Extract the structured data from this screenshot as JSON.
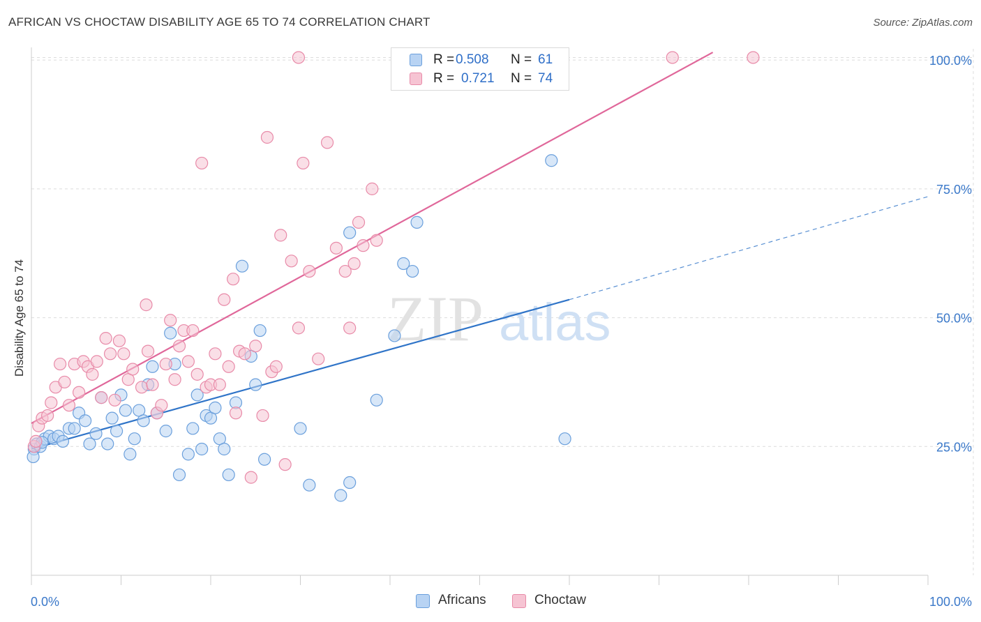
{
  "header": {
    "title": "AFRICAN VS CHOCTAW DISABILITY AGE 65 TO 74 CORRELATION CHART",
    "source": "Source: ZipAtlas.com"
  },
  "legend_top": {
    "rows": [
      {
        "r_label": "R =",
        "r_value": "0.508",
        "n_label": "N =",
        "n_value": "61"
      },
      {
        "r_label": "R =",
        "r_value": "0.721",
        "n_label": "N =",
        "n_value": "74"
      }
    ]
  },
  "legend_bottom": {
    "items": [
      {
        "label": "Africans"
      },
      {
        "label": "Choctaw"
      }
    ]
  },
  "watermark": {
    "left": "ZIP",
    "right": "atlas"
  },
  "colors": {
    "africans_fill": "#b8d3f3",
    "africans_stroke": "#6a9fdc",
    "africans_line": "#2f74c8",
    "choctaw_fill": "#f6c4d3",
    "choctaw_stroke": "#e88aa8",
    "choctaw_line": "#e0679a",
    "axis_tick_text": "#3a78c9",
    "grid": "#dcdcdc"
  },
  "chart_data": {
    "type": "scatter",
    "title": "AFRICAN VS CHOCTAW DISABILITY AGE 65 TO 74 CORRELATION CHART",
    "xlabel": "",
    "ylabel": "Disability Age 65 to 74",
    "xlim": [
      0,
      100
    ],
    "ylim": [
      0,
      103
    ],
    "x_ticks": [
      "0.0%",
      "100.0%"
    ],
    "y_ticks": [
      {
        "value": 25,
        "label": "25.0%"
      },
      {
        "value": 50,
        "label": "50.0%"
      },
      {
        "value": 75,
        "label": "75.0%"
      },
      {
        "value": 100,
        "label": "100.0%"
      }
    ],
    "grid": true,
    "legend_position": "top-center",
    "series": [
      {
        "name": "Africans",
        "r": 0.508,
        "n": 61,
        "trend": {
          "x0": 0,
          "y0": 24.5,
          "x1": 60,
          "y1": 53.5,
          "dashed_to_x": 100,
          "dashed_to_y": 73.5
        },
        "points": [
          [
            0.3,
            24.5
          ],
          [
            0.6,
            25.5
          ],
          [
            1.0,
            25.0
          ],
          [
            1.5,
            26.5
          ],
          [
            2.0,
            27.0
          ],
          [
            2.5,
            26.5
          ],
          [
            3.0,
            27.0
          ],
          [
            3.5,
            26.0
          ],
          [
            4.2,
            28.5
          ],
          [
            4.8,
            28.5
          ],
          [
            5.3,
            31.5
          ],
          [
            6.5,
            25.5
          ],
          [
            6.0,
            30.0
          ],
          [
            7.2,
            27.5
          ],
          [
            7.8,
            34.5
          ],
          [
            8.5,
            25.5
          ],
          [
            9.0,
            30.5
          ],
          [
            9.5,
            28.0
          ],
          [
            10.0,
            35.0
          ],
          [
            10.5,
            32.0
          ],
          [
            11.0,
            23.5
          ],
          [
            11.5,
            26.5
          ],
          [
            12.0,
            32.0
          ],
          [
            12.5,
            30.0
          ],
          [
            13.0,
            37.0
          ],
          [
            13.5,
            40.5
          ],
          [
            14.0,
            31.5
          ],
          [
            15.0,
            28.0
          ],
          [
            15.5,
            47.0
          ],
          [
            16.0,
            41.0
          ],
          [
            16.5,
            19.5
          ],
          [
            17.5,
            23.5
          ],
          [
            18.0,
            28.5
          ],
          [
            18.5,
            35.0
          ],
          [
            19.0,
            24.5
          ],
          [
            19.5,
            31.0
          ],
          [
            20.0,
            30.5
          ],
          [
            20.5,
            32.5
          ],
          [
            21.0,
            26.5
          ],
          [
            21.5,
            24.5
          ],
          [
            22.0,
            19.5
          ],
          [
            22.8,
            33.5
          ],
          [
            23.5,
            60.0
          ],
          [
            24.5,
            42.5
          ],
          [
            25.0,
            37.0
          ],
          [
            25.5,
            47.5
          ],
          [
            26.0,
            22.5
          ],
          [
            30.0,
            28.5
          ],
          [
            31.0,
            17.5
          ],
          [
            34.5,
            15.5
          ],
          [
            35.5,
            66.5
          ],
          [
            35.5,
            18.0
          ],
          [
            38.5,
            34.0
          ],
          [
            40.5,
            46.5
          ],
          [
            41.5,
            60.5
          ],
          [
            42.5,
            59.0
          ],
          [
            43.0,
            68.5
          ],
          [
            58.0,
            80.5
          ],
          [
            59.5,
            26.5
          ],
          [
            0.2,
            23.0
          ],
          [
            1.2,
            25.8
          ]
        ]
      },
      {
        "name": "Choctaw",
        "r": 0.721,
        "n": 74,
        "trend": {
          "x0": 0,
          "y0": 29.5,
          "x1": 76,
          "y1": 101.5
        },
        "points": [
          [
            0.3,
            25.0
          ],
          [
            0.5,
            26.0
          ],
          [
            0.8,
            29.0
          ],
          [
            1.2,
            30.5
          ],
          [
            1.8,
            31.0
          ],
          [
            2.2,
            33.5
          ],
          [
            2.7,
            36.5
          ],
          [
            3.2,
            41.0
          ],
          [
            3.7,
            37.5
          ],
          [
            4.2,
            33.0
          ],
          [
            4.8,
            41.0
          ],
          [
            5.3,
            35.5
          ],
          [
            5.8,
            41.5
          ],
          [
            6.3,
            40.5
          ],
          [
            6.8,
            39.0
          ],
          [
            7.3,
            41.5
          ],
          [
            7.8,
            34.5
          ],
          [
            8.3,
            46.0
          ],
          [
            8.8,
            43.0
          ],
          [
            9.3,
            34.0
          ],
          [
            9.8,
            45.5
          ],
          [
            10.3,
            43.0
          ],
          [
            10.8,
            38.0
          ],
          [
            11.3,
            40.0
          ],
          [
            12.3,
            36.5
          ],
          [
            12.8,
            52.5
          ],
          [
            13.0,
            43.5
          ],
          [
            13.5,
            37.0
          ],
          [
            14.0,
            31.5
          ],
          [
            14.5,
            33.0
          ],
          [
            15.0,
            41.0
          ],
          [
            15.5,
            49.5
          ],
          [
            16.0,
            38.0
          ],
          [
            16.5,
            44.5
          ],
          [
            17.0,
            47.5
          ],
          [
            17.5,
            41.5
          ],
          [
            18.0,
            47.5
          ],
          [
            18.5,
            39.0
          ],
          [
            19.0,
            80.0
          ],
          [
            19.5,
            36.5
          ],
          [
            20.0,
            37.0
          ],
          [
            20.5,
            43.0
          ],
          [
            21.0,
            37.0
          ],
          [
            21.5,
            53.5
          ],
          [
            22.0,
            40.5
          ],
          [
            22.5,
            57.5
          ],
          [
            22.8,
            31.5
          ],
          [
            23.2,
            43.5
          ],
          [
            23.8,
            43.0
          ],
          [
            24.5,
            19.0
          ],
          [
            25.0,
            44.5
          ],
          [
            25.8,
            31.0
          ],
          [
            26.3,
            85.0
          ],
          [
            26.8,
            39.5
          ],
          [
            27.3,
            40.5
          ],
          [
            27.8,
            66.0
          ],
          [
            28.3,
            21.5
          ],
          [
            29.0,
            61.0
          ],
          [
            29.8,
            48.0
          ],
          [
            30.3,
            80.0
          ],
          [
            31.0,
            59.0
          ],
          [
            32.0,
            42.0
          ],
          [
            33.0,
            84.0
          ],
          [
            34.0,
            63.5
          ],
          [
            35.0,
            59.0
          ],
          [
            35.5,
            48.0
          ],
          [
            36.0,
            60.5
          ],
          [
            36.5,
            68.5
          ],
          [
            37.0,
            64.0
          ],
          [
            38.0,
            75.0
          ],
          [
            38.5,
            65.0
          ],
          [
            29.8,
            100.5
          ],
          [
            71.5,
            100.5
          ],
          [
            80.5,
            100.5
          ]
        ]
      }
    ]
  }
}
